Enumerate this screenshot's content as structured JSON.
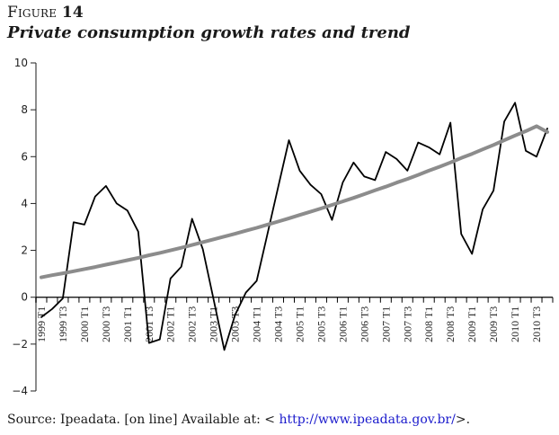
{
  "figure": {
    "label_prefix": "Figure",
    "label_number": "14",
    "title": "Private consumption growth rates and trend"
  },
  "source": {
    "prefix": "Source: Ipeadata. [on line] Available at: < ",
    "link": "http://www.ipeadata.gov.br/",
    "suffix": ">.",
    "link_color": "#1a1acc"
  },
  "chart_data": {
    "type": "line",
    "title": "Private consumption growth rates and trend",
    "xlabel": "",
    "ylabel": "",
    "ylim": [
      -4,
      10
    ],
    "yticks": [
      -4,
      -2,
      0,
      2,
      4,
      6,
      8,
      10
    ],
    "grid": false,
    "legend": "none",
    "x": [
      "1999 T1",
      "1999 T2",
      "1999 T3",
      "1999 T4",
      "2000 T1",
      "2000 T2",
      "2000 T3",
      "2000 T4",
      "2001 T1",
      "2001 T2",
      "2001 T3",
      "2001 T4",
      "2002 T1",
      "2002 T2",
      "2002 T3",
      "2002 T4",
      "2003 T1",
      "2003 T2",
      "2003 T3",
      "2003 T4",
      "2004 T1",
      "2004 T2",
      "2004 T3",
      "2004 T4",
      "2005 T1",
      "2005 T2",
      "2005 T3",
      "2005 T4",
      "2006 T1",
      "2006 T2",
      "2006 T3",
      "2006 T4",
      "2007 T1",
      "2007 T2",
      "2007 T3",
      "2007 T4",
      "2008 T1",
      "2008 T2",
      "2008 T3",
      "2008 T4",
      "2009 T1",
      "2009 T2",
      "2009 T3",
      "2009 T4",
      "2010 T1",
      "2010 T2",
      "2010 T3",
      "2010 T4"
    ],
    "xtick_labels": [
      "1999 T1",
      "1999 T3",
      "2000 T1",
      "2000 T3",
      "2001 T1",
      "2001 T3",
      "2002 T1",
      "2002 T3",
      "2003 T1",
      "2003 T3",
      "2004 T1",
      "2004 T3",
      "2005 T1",
      "2005 T3",
      "2006 T1",
      "2006 T3",
      "2007 T1",
      "2007 T3",
      "2008 T1",
      "2008 T3",
      "2009 T1",
      "2009 T3",
      "2010 T1",
      "2010 T3"
    ],
    "series": [
      {
        "name": "Private consumption growth rate",
        "color": "#000000",
        "values": [
          -0.85,
          -0.5,
          -0.05,
          3.2,
          3.1,
          4.3,
          4.75,
          4.0,
          3.7,
          2.8,
          -1.95,
          -1.8,
          0.8,
          1.3,
          3.35,
          2.05,
          -0.1,
          -2.25,
          -0.75,
          0.2,
          0.7,
          2.7,
          4.7,
          6.7,
          5.4,
          4.8,
          4.4,
          3.3,
          4.9,
          5.75,
          5.15,
          5.0,
          6.2,
          5.9,
          5.4,
          6.6,
          6.4,
          6.1,
          7.45,
          2.7,
          1.85,
          3.75,
          4.55,
          7.5,
          8.3,
          6.25,
          6.0,
          7.2
        ]
      },
      {
        "name": "Trend",
        "color": "#8c8c8c",
        "values": [
          0.85,
          0.94,
          1.02,
          1.11,
          1.2,
          1.29,
          1.39,
          1.48,
          1.58,
          1.68,
          1.79,
          1.89,
          2.0,
          2.11,
          2.23,
          2.35,
          2.47,
          2.59,
          2.71,
          2.84,
          2.96,
          3.1,
          3.23,
          3.37,
          3.51,
          3.65,
          3.79,
          3.94,
          4.09,
          4.24,
          4.4,
          4.56,
          4.72,
          4.89,
          5.05,
          5.22,
          5.4,
          5.57,
          5.75,
          5.94,
          6.12,
          6.31,
          6.5,
          6.7,
          6.9,
          7.09,
          7.3,
          7.05
        ]
      }
    ]
  }
}
